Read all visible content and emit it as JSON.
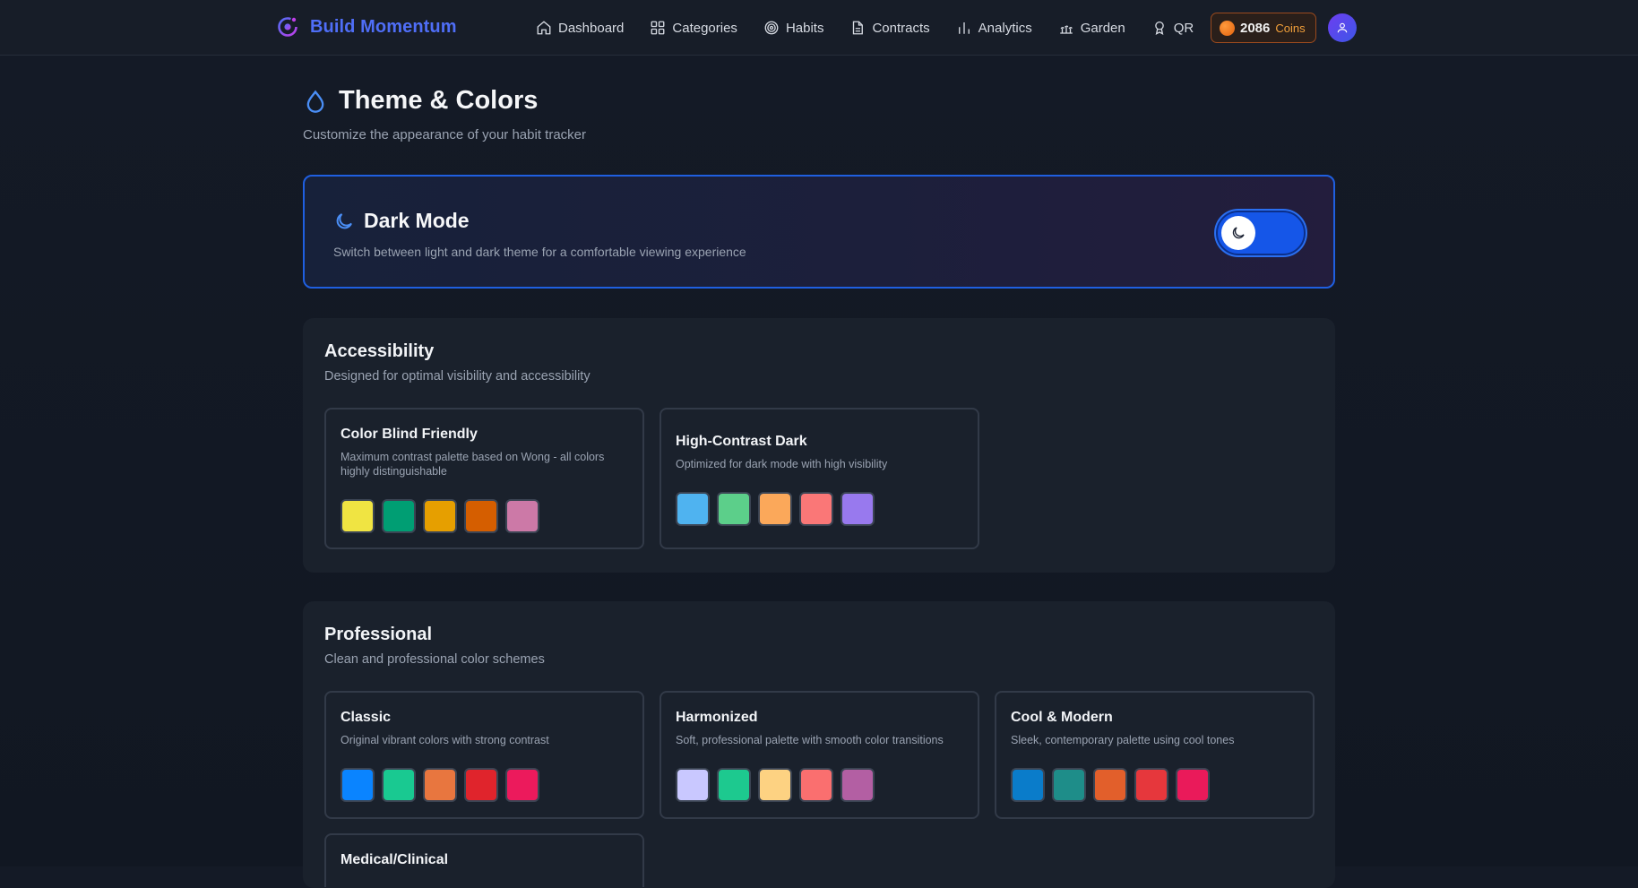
{
  "nav": {
    "brand": "Build Momentum",
    "items": [
      {
        "label": "Dashboard",
        "icon": "home-icon"
      },
      {
        "label": "Categories",
        "icon": "grid-icon"
      },
      {
        "label": "Habits",
        "icon": "target-icon"
      },
      {
        "label": "Contracts",
        "icon": "document-icon"
      },
      {
        "label": "Analytics",
        "icon": "bar-chart-icon"
      },
      {
        "label": "Garden",
        "icon": "garden-icon"
      },
      {
        "label": "QR",
        "icon": "award-icon"
      }
    ],
    "coins": {
      "value": "2086",
      "label": "Coins"
    }
  },
  "header": {
    "title": "Theme & Colors",
    "subtitle": "Customize the appearance of your habit tracker"
  },
  "dark_mode": {
    "title": "Dark Mode",
    "description": "Switch between light and dark theme for a comfortable viewing experience",
    "enabled": true
  },
  "sections": {
    "accessibility": {
      "title": "Accessibility",
      "subtitle": "Designed for optimal visibility and accessibility",
      "themes": [
        {
          "name": "Color Blind Friendly",
          "description": "Maximum contrast palette based on Wong - all colors highly distinguishable",
          "colors": [
            "#f0e442",
            "#009e73",
            "#e69f00",
            "#d55e00",
            "#cc79a7"
          ]
        },
        {
          "name": "High-Contrast Dark",
          "description": "Optimized for dark mode with high visibility",
          "colors": [
            "#4fb3f0",
            "#5ccf8a",
            "#fba85a",
            "#fa7777",
            "#9879ee"
          ]
        }
      ]
    },
    "professional": {
      "title": "Professional",
      "subtitle": "Clean and professional color schemes",
      "themes": [
        {
          "name": "Classic",
          "description": "Original vibrant colors with strong contrast",
          "colors": [
            "#0a84ff",
            "#19c991",
            "#e8763f",
            "#e0242c",
            "#ec1a5c"
          ]
        },
        {
          "name": "Harmonized",
          "description": "Soft, professional palette with smooth color transitions",
          "colors": [
            "#c9c8ff",
            "#1dc98f",
            "#fdd282",
            "#fa6f6f",
            "#b35fa3"
          ]
        },
        {
          "name": "Cool & Modern",
          "description": "Sleek, contemporary palette using cool tones",
          "colors": [
            "#0a7cca",
            "#1e8d89",
            "#e25f2b",
            "#e6373c",
            "#ea1a5a"
          ]
        },
        {
          "name": "Medical/Clinical",
          "description": "",
          "colors": []
        }
      ]
    }
  }
}
